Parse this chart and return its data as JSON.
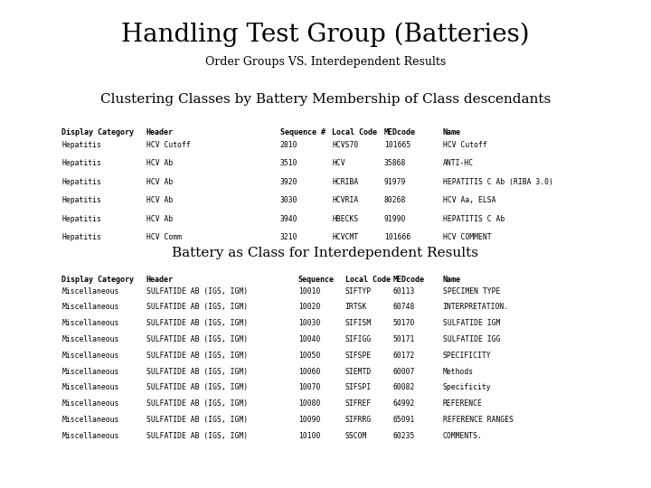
{
  "title": "Handling Test Group (Batteries)",
  "subtitle": "Order Groups VS. Interdependent Results",
  "section1_title": "Clustering Classes by Battery Membership of Class descendants",
  "section1_headers": [
    "Display Category",
    "Header",
    "Sequence #",
    "Local Code",
    "MEDcode",
    "Name"
  ],
  "section1_rows": [
    [
      "Hepatitis",
      "HCV Cutoff",
      "2810",
      "HCVS70",
      "101665",
      "HCV Cutoff"
    ],
    [
      "Hepatitis",
      "HCV Ab",
      "3510",
      "HCV",
      "35868",
      "ANTI-HC"
    ],
    [
      "Hepatitis",
      "HCV Ab",
      "3920",
      "HCRIBA",
      "91979",
      "HEPATITIS C Ab (RIBA 3.0)"
    ],
    [
      "Hepatitis",
      "HCV Ab",
      "3030",
      "HCVRIA",
      "80268",
      "HCV Aa, ELSA"
    ],
    [
      "Hepatitis",
      "HCV Ab",
      "3940",
      "HBECKS",
      "91990",
      "HEPATITIS C Ab"
    ],
    [
      "Hepatitis",
      "HCV Comm",
      "3210",
      "HCVCMT",
      "101666",
      "HCV COMMENT"
    ]
  ],
  "section2_title": "Battery as Class for Interdependent Results",
  "section2_headers": [
    "Display Category",
    "Header",
    "Sequence",
    "Local Code",
    "MEDcode",
    "Name"
  ],
  "section2_rows": [
    [
      "Miscellaneous",
      "SULFATIDE AB (IGS, IGM)",
      "10010",
      "SIFTYP",
      "60113",
      "SPECIMEN TYPE"
    ],
    [
      "Miscellaneous",
      "SULFATIDE AB (IGS, IGM)",
      "10020",
      "IRTSK",
      "60748",
      "INTERPRETATION."
    ],
    [
      "Miscellaneous",
      "SULFATIDE AB (IGS, IGM)",
      "10030",
      "SIFISM",
      "50170",
      "SULFATIDE IGM"
    ],
    [
      "Miscellaneous",
      "SULFATIDE AB (IGS, IGM)",
      "10040",
      "SIFIGG",
      "50171",
      "SULFATIDE IGG"
    ],
    [
      "Miscellaneous",
      "SULFATIDE AB (IGS, IGM)",
      "10050",
      "SIFSPE",
      "60172",
      "SPECIFICITY"
    ],
    [
      "Miscellaneous",
      "SULFATIDE AB (IGS, IGM)",
      "10060",
      "SIEMTD",
      "60007",
      "Methods"
    ],
    [
      "Miscellaneous",
      "SULFATIDE AB (IGS, IGM)",
      "10070",
      "SIFSPI",
      "60082",
      "Specificity"
    ],
    [
      "Miscellaneous",
      "SULFATIDE AB (IGS, IGM)",
      "10080",
      "SIFREF",
      "64992",
      "REFERENCE"
    ],
    [
      "Miscellaneous",
      "SULFATIDE AB (IGS, IGM)",
      "10090",
      "SIFRRG",
      "65091",
      "REFERENCE RANGES"
    ],
    [
      "Miscellaneous",
      "SULFATIDE AB (IGS, IGM)",
      "10100",
      "SSCOM",
      "60235",
      "COMMENTS."
    ]
  ],
  "bg_color": "#ffffff",
  "text_color": "#000000",
  "title_fontsize": 20,
  "subtitle_fontsize": 9,
  "section_title_fontsize": 11,
  "header_fontsize": 6.0,
  "row_fontsize": 5.8
}
